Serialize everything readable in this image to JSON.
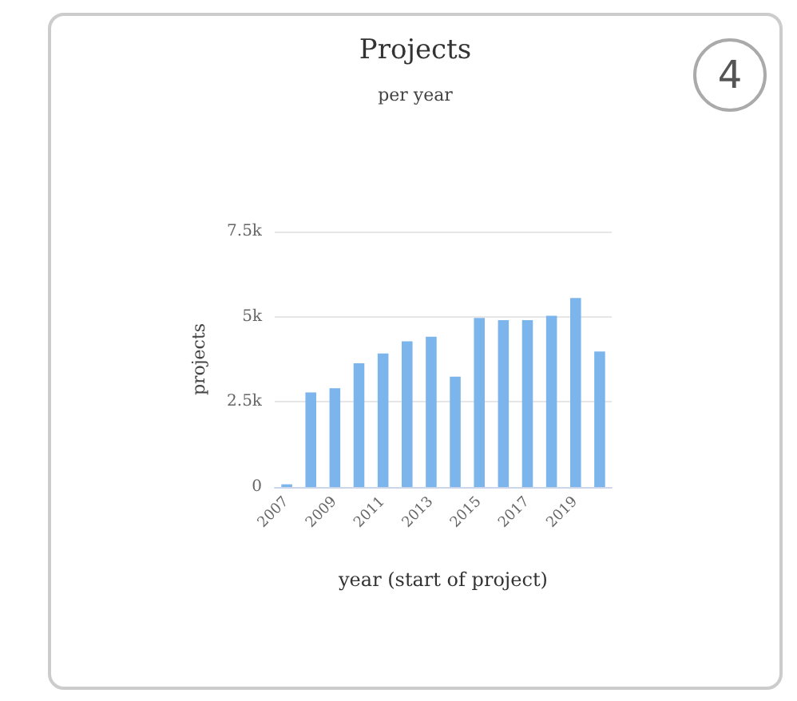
{
  "chart_data": {
    "type": "bar",
    "title": "Projects",
    "subtitle": "per year",
    "xlabel": "year (start of project)",
    "ylabel": "projects",
    "categories": [
      "2007",
      null,
      "2009",
      null,
      "2011",
      null,
      "2013",
      null,
      "2015",
      null,
      "2017",
      null,
      "2019",
      null
    ],
    "values": [
      80,
      2780,
      2900,
      3630,
      3920,
      4280,
      4410,
      3240,
      4960,
      4900,
      4900,
      5030,
      5550,
      3980
    ],
    "color": "#7cb5ec",
    "ylim": [
      0,
      7500
    ],
    "yticks": [
      0,
      {
        "value": 2500,
        "label": "2.5k"
      },
      {
        "value": 5000,
        "label": "5k"
      },
      {
        "value": 7500,
        "label": "7.5k"
      }
    ],
    "grid": "y",
    "annotations": [
      "4"
    ]
  }
}
